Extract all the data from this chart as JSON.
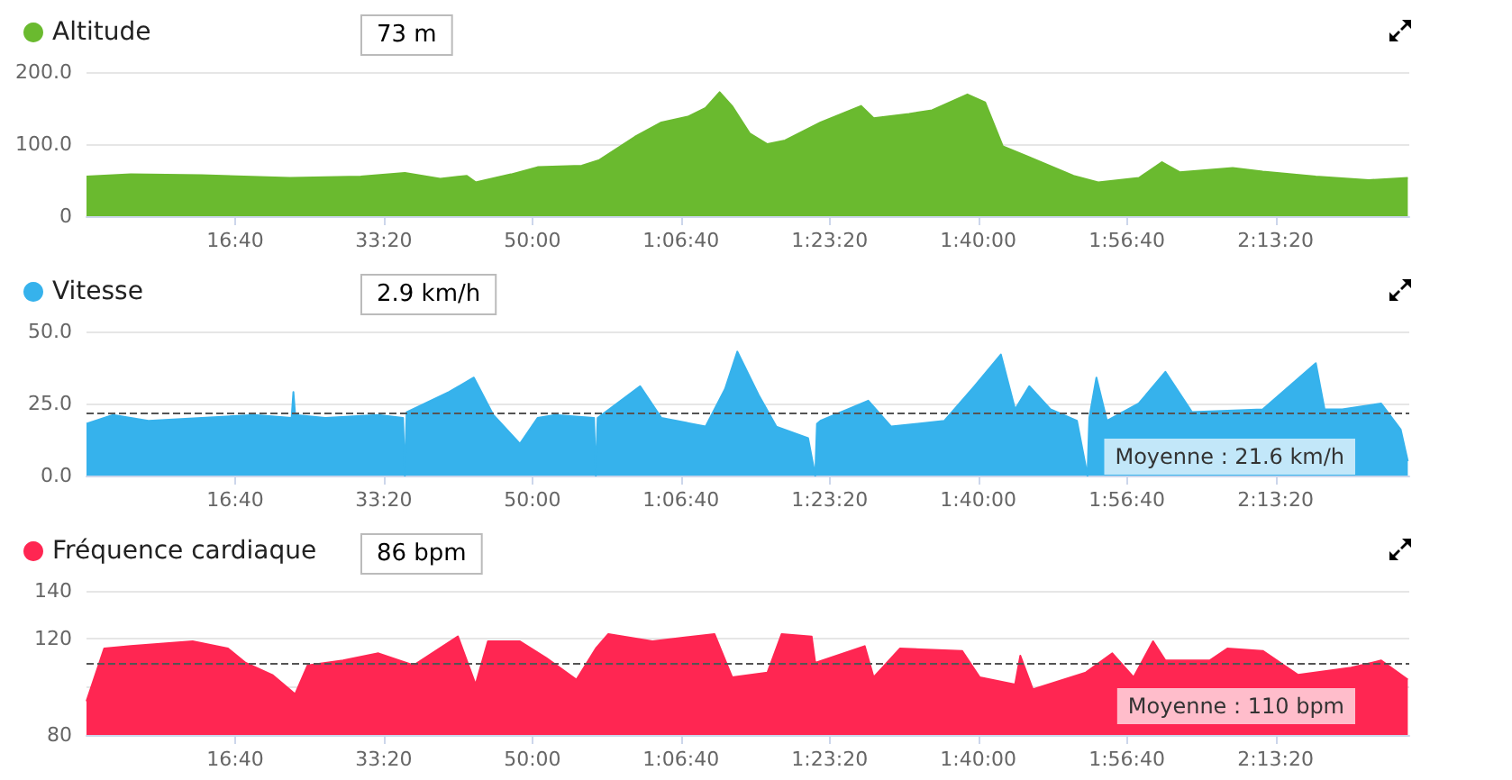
{
  "chart_data": [
    {
      "type": "area",
      "legend": "top left",
      "grid": "y",
      "marker": "none",
      "xlim": [
        0,
        8900
      ],
      "ylim": [
        0,
        200
      ],
      "xticks": [
        {
          "value": 1000,
          "label": "16:40"
        },
        {
          "value": 2000,
          "label": "33:20"
        },
        {
          "value": 3000,
          "label": "50:00"
        },
        {
          "value": 4000,
          "label": "1:06:40"
        },
        {
          "value": 5000,
          "label": "1:23:20"
        },
        {
          "value": 6000,
          "label": "1:40:00"
        },
        {
          "value": 7000,
          "label": "1:56:40"
        },
        {
          "value": 8000,
          "label": "2:13:20"
        }
      ],
      "yticks": [
        0,
        {
          "value": 100,
          "label": "100.0"
        },
        {
          "value": 200,
          "label": "200.0"
        }
      ],
      "annotations": [
        "73 m"
      ],
      "series": [
        {
          "name": "Altitude",
          "color": "#6aba2f",
          "x": [
            0,
            298,
            774,
            1369,
            1845,
            2142,
            2380,
            2559,
            2618,
            2856,
            3035,
            3332,
            3451,
            3689,
            3868,
            4046,
            4165,
            4260,
            4343,
            4462,
            4581,
            4700,
            4939,
            5212,
            5296,
            5534,
            5689,
            5927,
            6046,
            6165,
            6331,
            6641,
            6807,
            7081,
            7236,
            7355,
            7712,
            7914,
            8271,
            8628,
            8890
          ],
          "values": [
            55,
            58,
            57,
            53,
            55,
            60,
            52,
            56,
            47,
            58,
            68,
            70,
            78,
            110,
            130,
            138,
            150,
            172,
            153,
            115,
            100,
            105,
            130,
            153,
            136,
            142,
            147,
            169,
            158,
            97,
            83,
            56,
            47,
            53,
            75,
            61,
            67,
            62,
            55,
            50,
            53
          ]
        }
      ]
    },
    {
      "type": "area",
      "legend": "top left",
      "grid": "y",
      "marker": "none",
      "xlim": [
        0,
        8900
      ],
      "ylim": [
        0,
        50
      ],
      "xticks": [
        {
          "value": 1000,
          "label": "16:40"
        },
        {
          "value": 2000,
          "label": "33:20"
        },
        {
          "value": 3000,
          "label": "50:00"
        },
        {
          "value": 4000,
          "label": "1:06:40"
        },
        {
          "value": 5000,
          "label": "1:23:20"
        },
        {
          "value": 6000,
          "label": "1:40:00"
        },
        {
          "value": 7000,
          "label": "1:56:40"
        },
        {
          "value": 8000,
          "label": "2:13:20"
        }
      ],
      "yticks": [
        {
          "value": 0,
          "label": "0.0"
        },
        {
          "value": 25,
          "label": "25.0"
        },
        {
          "value": 50,
          "label": "50.0"
        }
      ],
      "ref_lines": [
        {
          "axis": "y",
          "value": 21.6,
          "label": "Moyenne : 21.6 km/h",
          "color": "#555555",
          "line_style": "dashed"
        }
      ],
      "annotations": [
        "2.9 km/h"
      ],
      "series": [
        {
          "name": "Vitesse",
          "color": "#36b2ec",
          "x": [
            0,
            179,
            417,
            774,
            1131,
            1380,
            1392,
            1404,
            1607,
            1964,
            2130,
            2142,
            2154,
            2440,
            2606,
            2737,
            2916,
            3035,
            3154,
            3415,
            3427,
            3439,
            3725,
            3868,
            4165,
            4296,
            4379,
            4522,
            4641,
            4855,
            4903,
            4915,
            4938,
            5260,
            5414,
            5772,
            5974,
            6152,
            6248,
            6343,
            6486,
            6664,
            6735,
            6747,
            6795,
            6866,
            7080,
            7259,
            7438,
            7914,
            8271,
            8330,
            8449,
            8711,
            8842,
            8890
          ],
          "values": [
            18,
            21,
            19,
            20,
            21,
            20,
            29,
            21,
            20,
            21,
            20,
            0,
            22,
            29,
            34,
            21,
            11,
            20,
            21,
            20,
            0,
            20,
            31,
            20,
            17,
            30,
            43,
            28,
            17,
            13,
            0,
            18,
            19,
            26,
            17,
            19,
            31,
            42,
            23,
            31,
            23,
            19,
            0,
            20,
            34,
            19,
            25,
            36,
            22,
            23,
            39,
            23,
            23,
            25,
            16,
            5
          ]
        }
      ]
    },
    {
      "type": "area",
      "legend": "top left",
      "grid": "y",
      "marker": "none",
      "xlim": [
        0,
        8900
      ],
      "ylim": [
        80,
        140
      ],
      "xticks": [
        {
          "value": 1000,
          "label": "16:40"
        },
        {
          "value": 2000,
          "label": "33:20"
        },
        {
          "value": 3000,
          "label": "50:00"
        },
        {
          "value": 4000,
          "label": "1:06:40"
        },
        {
          "value": 5000,
          "label": "1:23:20"
        },
        {
          "value": 6000,
          "label": "1:40:00"
        },
        {
          "value": 7000,
          "label": "1:56:40"
        },
        {
          "value": 8000,
          "label": "2:13:20"
        }
      ],
      "yticks": [
        80,
        {
          "value": 100,
          "label": null
        },
        120,
        140
      ],
      "ref_lines": [
        {
          "axis": "y",
          "value": 110,
          "label": "Moyenne : 110 bpm",
          "color": "#555555",
          "line_style": "dashed"
        }
      ],
      "annotations": [
        "86 bpm"
      ],
      "series": [
        {
          "name": "Fréquence cardiaque",
          "color": "#ff2652",
          "x": [
            0,
            119,
            298,
            714,
            952,
            1071,
            1250,
            1404,
            1488,
            1726,
            1964,
            2202,
            2499,
            2618,
            2701,
            2916,
            3094,
            3296,
            3427,
            3511,
            3808,
            4225,
            4344,
            4582,
            4677,
            4879,
            4903,
            5236,
            5296,
            5474,
            5891,
            6010,
            6248,
            6283,
            6367,
            6724,
            6902,
            7045,
            7176,
            7259,
            7557,
            7676,
            7914,
            8152,
            8509,
            8711,
            8890
          ],
          "values": [
            94,
            116,
            117,
            119,
            116,
            110,
            105,
            97,
            109,
            111,
            114,
            109,
            121,
            101,
            119,
            119,
            112,
            103,
            116,
            122,
            119,
            122,
            104,
            106,
            122,
            121,
            110,
            117,
            104,
            116,
            115,
            104,
            101,
            113,
            99,
            106,
            114,
            104,
            119,
            111,
            111,
            116,
            115,
            105,
            108,
            111,
            103
          ]
        }
      ]
    }
  ]
}
